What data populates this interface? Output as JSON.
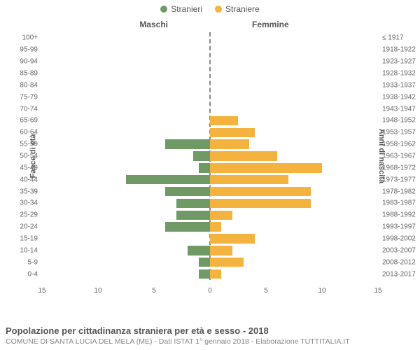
{
  "legend": {
    "male": {
      "label": "Stranieri",
      "color": "#6f9a66"
    },
    "female": {
      "label": "Straniere",
      "color": "#f3b33e"
    }
  },
  "column_headers": {
    "left": "Maschi",
    "right": "Femmine"
  },
  "y_titles": {
    "left": "Fasce di età",
    "right": "Anni di nascita"
  },
  "x_axis": {
    "max": 15,
    "ticks": [
      15,
      10,
      5,
      0,
      5,
      10,
      15
    ]
  },
  "chart": {
    "type": "population-pyramid",
    "background_color": "#ffffff",
    "center_line_color": "#888888",
    "bar_height_ratio": 0.8,
    "male_color": "#6f9a66",
    "female_color": "#f3b33e",
    "tick_font_size": 10,
    "tick_color": "#666666",
    "rows": [
      {
        "age": "100+",
        "year": "≤ 1917",
        "m": 0,
        "f": 0
      },
      {
        "age": "95-99",
        "year": "1918-1922",
        "m": 0,
        "f": 0
      },
      {
        "age": "90-94",
        "year": "1923-1927",
        "m": 0,
        "f": 0
      },
      {
        "age": "85-89",
        "year": "1928-1932",
        "m": 0,
        "f": 0
      },
      {
        "age": "80-84",
        "year": "1933-1937",
        "m": 0,
        "f": 0
      },
      {
        "age": "75-79",
        "year": "1938-1942",
        "m": 0,
        "f": 0
      },
      {
        "age": "70-74",
        "year": "1943-1947",
        "m": 0,
        "f": 0
      },
      {
        "age": "65-69",
        "year": "1948-1952",
        "m": 0,
        "f": 2.5
      },
      {
        "age": "60-64",
        "year": "1953-1957",
        "m": 0,
        "f": 4
      },
      {
        "age": "55-59",
        "year": "1958-1962",
        "m": 4,
        "f": 3.5
      },
      {
        "age": "50-54",
        "year": "1963-1967",
        "m": 1.5,
        "f": 6
      },
      {
        "age": "45-49",
        "year": "1968-1972",
        "m": 1,
        "f": 10
      },
      {
        "age": "40-44",
        "year": "1973-1977",
        "m": 7.5,
        "f": 7
      },
      {
        "age": "35-39",
        "year": "1978-1982",
        "m": 4,
        "f": 9
      },
      {
        "age": "30-34",
        "year": "1983-1987",
        "m": 3,
        "f": 9
      },
      {
        "age": "25-29",
        "year": "1988-1992",
        "m": 3,
        "f": 2
      },
      {
        "age": "20-24",
        "year": "1993-1997",
        "m": 4,
        "f": 1
      },
      {
        "age": "15-19",
        "year": "1998-2002",
        "m": 0,
        "f": 4
      },
      {
        "age": "10-14",
        "year": "2003-2007",
        "m": 2,
        "f": 2
      },
      {
        "age": "5-9",
        "year": "2008-2012",
        "m": 1,
        "f": 3
      },
      {
        "age": "0-4",
        "year": "2013-2017",
        "m": 1,
        "f": 1
      }
    ]
  },
  "footer": {
    "title": "Popolazione per cittadinanza straniera per età e sesso - 2018",
    "subtitle": "COMUNE DI SANTA LUCIA DEL MELA (ME) - Dati ISTAT 1° gennaio 2018 - Elaborazione TUTTITALIA.IT"
  }
}
